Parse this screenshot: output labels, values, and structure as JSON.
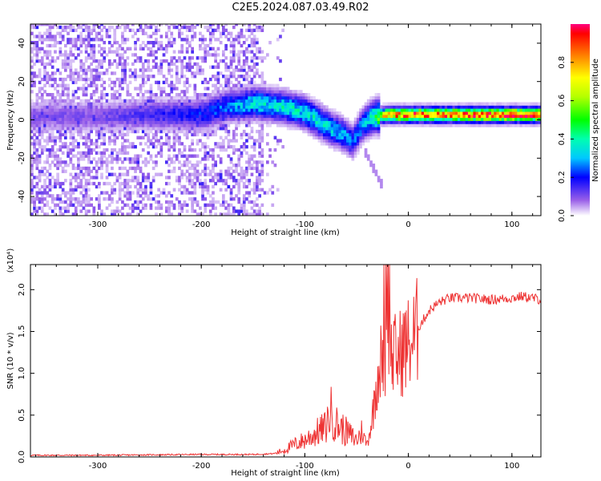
{
  "title": "C2E5.2024.087.03.49.R02",
  "chart_data": [
    {
      "type": "heatmap",
      "xlabel": "Height of straight line (km)",
      "ylabel": "Frequency (Hz)",
      "xlim": [
        -365,
        128
      ],
      "ylim": [
        -50,
        50
      ],
      "xticks": [
        -300,
        -200,
        -100,
        0,
        100
      ],
      "yticks": [
        -40,
        -20,
        0,
        20,
        40
      ],
      "colorbar": {
        "label": "Normalized spectral amplitude",
        "range": [
          0.0,
          1.0
        ],
        "ticks": [
          "0.0",
          "0.2",
          "0.4",
          "0.6",
          "0.8"
        ]
      },
      "ridge": {
        "description_points_x": [
          -300,
          -250,
          -200,
          -180,
          -150,
          -120,
          -100,
          -80,
          -65,
          -55,
          -45,
          -35,
          -20,
          0,
          50,
          100,
          128
        ],
        "frequency_hz": [
          1,
          2,
          2,
          6,
          8,
          6,
          3,
          -4,
          -8,
          -12,
          -3,
          1,
          2,
          2,
          2,
          2,
          2
        ],
        "amplitude": [
          0.1,
          0.15,
          0.2,
          0.25,
          0.35,
          0.35,
          0.35,
          0.35,
          0.3,
          0.25,
          0.3,
          0.4,
          0.8,
          0.85,
          0.85,
          0.9,
          0.9
        ]
      }
    },
    {
      "type": "line",
      "xlabel": "Height of straight line (km)",
      "ylabel": "SNR (10 * v/v)",
      "yscale_label": "(x10⁴)",
      "xlim": [
        -365,
        128
      ],
      "ylim": [
        0.0,
        2.3
      ],
      "xticks": [
        -300,
        -200,
        -100,
        0,
        100
      ],
      "yticks": [
        "0.0",
        "0.5",
        "1.0",
        "1.5",
        "2.0"
      ],
      "series": [
        {
          "color": "#ee3333",
          "x": [
            -365,
            -300,
            -250,
            -200,
            -150,
            -130,
            -120,
            -110,
            -100,
            -90,
            -80,
            -75,
            -70,
            -60,
            -50,
            -45,
            -40,
            -35,
            -30,
            -25,
            -20,
            -15,
            -10,
            -5,
            0,
            5,
            10,
            20,
            30,
            40,
            60,
            80,
            100,
            110,
            120,
            128
          ],
          "y": [
            0.02,
            0.02,
            0.025,
            0.03,
            0.03,
            0.04,
            0.08,
            0.15,
            0.2,
            0.28,
            0.35,
            0.55,
            0.4,
            0.3,
            0.2,
            0.3,
            0.15,
            0.45,
            1.0,
            1.2,
            1.3,
            1.2,
            1.2,
            1.3,
            1.35,
            1.4,
            1.55,
            1.75,
            1.85,
            1.9,
            1.9,
            1.88,
            1.9,
            1.92,
            1.9,
            1.88
          ]
        }
      ]
    }
  ]
}
